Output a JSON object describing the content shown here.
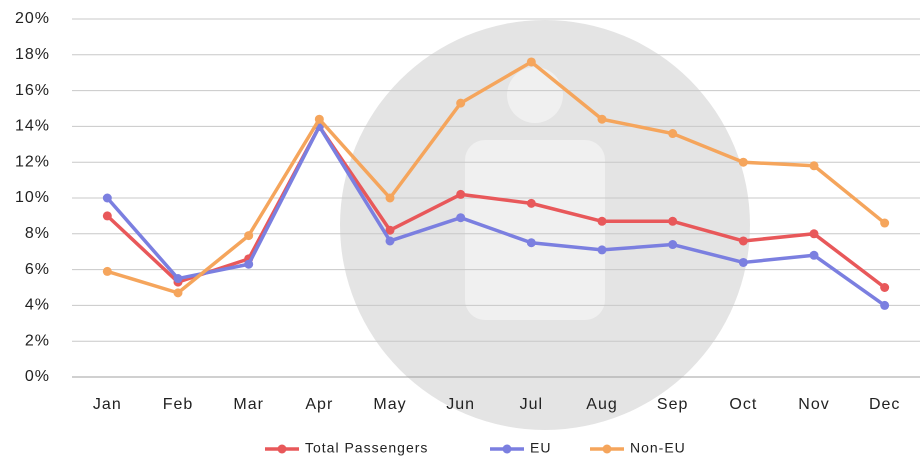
{
  "chart_data": {
    "type": "line",
    "categories": [
      "Jan",
      "Feb",
      "Mar",
      "Apr",
      "May",
      "Jun",
      "Jul",
      "Aug",
      "Sep",
      "Oct",
      "Nov",
      "Dec"
    ],
    "series": [
      {
        "name": "Total Passengers",
        "color": "#e8585a",
        "values": [
          9.0,
          5.3,
          6.6,
          14.0,
          8.2,
          10.2,
          9.7,
          8.7,
          8.7,
          7.6,
          8.0,
          5.0
        ]
      },
      {
        "name": "EU",
        "color": "#7b7fe0",
        "values": [
          10.0,
          5.5,
          6.3,
          14.0,
          7.6,
          8.9,
          7.5,
          7.1,
          7.4,
          6.4,
          6.8,
          4.0
        ]
      },
      {
        "name": "Non-EU",
        "color": "#f5a55c",
        "values": [
          5.9,
          4.7,
          7.9,
          14.4,
          10.0,
          15.3,
          17.6,
          14.4,
          13.6,
          12.0,
          11.8,
          8.6
        ]
      }
    ],
    "ylim": [
      0,
      20
    ],
    "yticks": [
      {
        "value": 0,
        "label": "0%"
      },
      {
        "value": 2,
        "label": "2%"
      },
      {
        "value": 4,
        "label": "4%"
      },
      {
        "value": 6,
        "label": "6%"
      },
      {
        "value": 8,
        "label": "8%"
      },
      {
        "value": 10,
        "label": "10%"
      },
      {
        "value": 12,
        "label": "12%"
      },
      {
        "value": 14,
        "label": "14%"
      },
      {
        "value": 16,
        "label": "16%"
      },
      {
        "value": 18,
        "label": "18%"
      },
      {
        "value": 20,
        "label": "20%"
      }
    ],
    "grid": true,
    "legend": "bottom"
  }
}
